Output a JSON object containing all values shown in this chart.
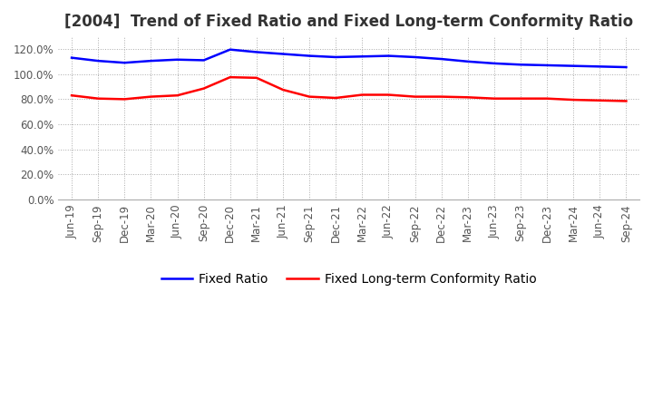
{
  "title": "[2004]  Trend of Fixed Ratio and Fixed Long-term Conformity Ratio",
  "x_labels": [
    "Jun-19",
    "Sep-19",
    "Dec-19",
    "Mar-20",
    "Jun-20",
    "Sep-20",
    "Dec-20",
    "Mar-21",
    "Jun-21",
    "Sep-21",
    "Dec-21",
    "Mar-22",
    "Jun-22",
    "Sep-22",
    "Dec-22",
    "Mar-23",
    "Jun-23",
    "Sep-23",
    "Dec-23",
    "Mar-24",
    "Jun-24",
    "Sep-24"
  ],
  "fixed_ratio": [
    113.0,
    110.5,
    109.0,
    110.5,
    111.5,
    111.0,
    119.5,
    117.5,
    116.0,
    114.5,
    113.5,
    114.0,
    114.5,
    113.5,
    112.0,
    110.0,
    108.5,
    107.5,
    107.0,
    106.5,
    106.0,
    105.5
  ],
  "fixed_lt_ratio": [
    83.0,
    80.5,
    80.0,
    82.0,
    83.0,
    88.5,
    97.5,
    97.0,
    87.5,
    82.0,
    81.0,
    83.5,
    83.5,
    82.0,
    82.0,
    81.5,
    80.5,
    80.5,
    80.5,
    79.5,
    79.0,
    78.5
  ],
  "fixed_ratio_color": "#0000ff",
  "fixed_lt_ratio_color": "#ff0000",
  "ylim": [
    0,
    130
  ],
  "yticks": [
    0,
    20,
    40,
    60,
    80,
    100,
    120
  ],
  "background_color": "#ffffff",
  "grid_color": "#aaaaaa",
  "title_fontsize": 12,
  "legend_fontsize": 10,
  "tick_fontsize": 8.5
}
